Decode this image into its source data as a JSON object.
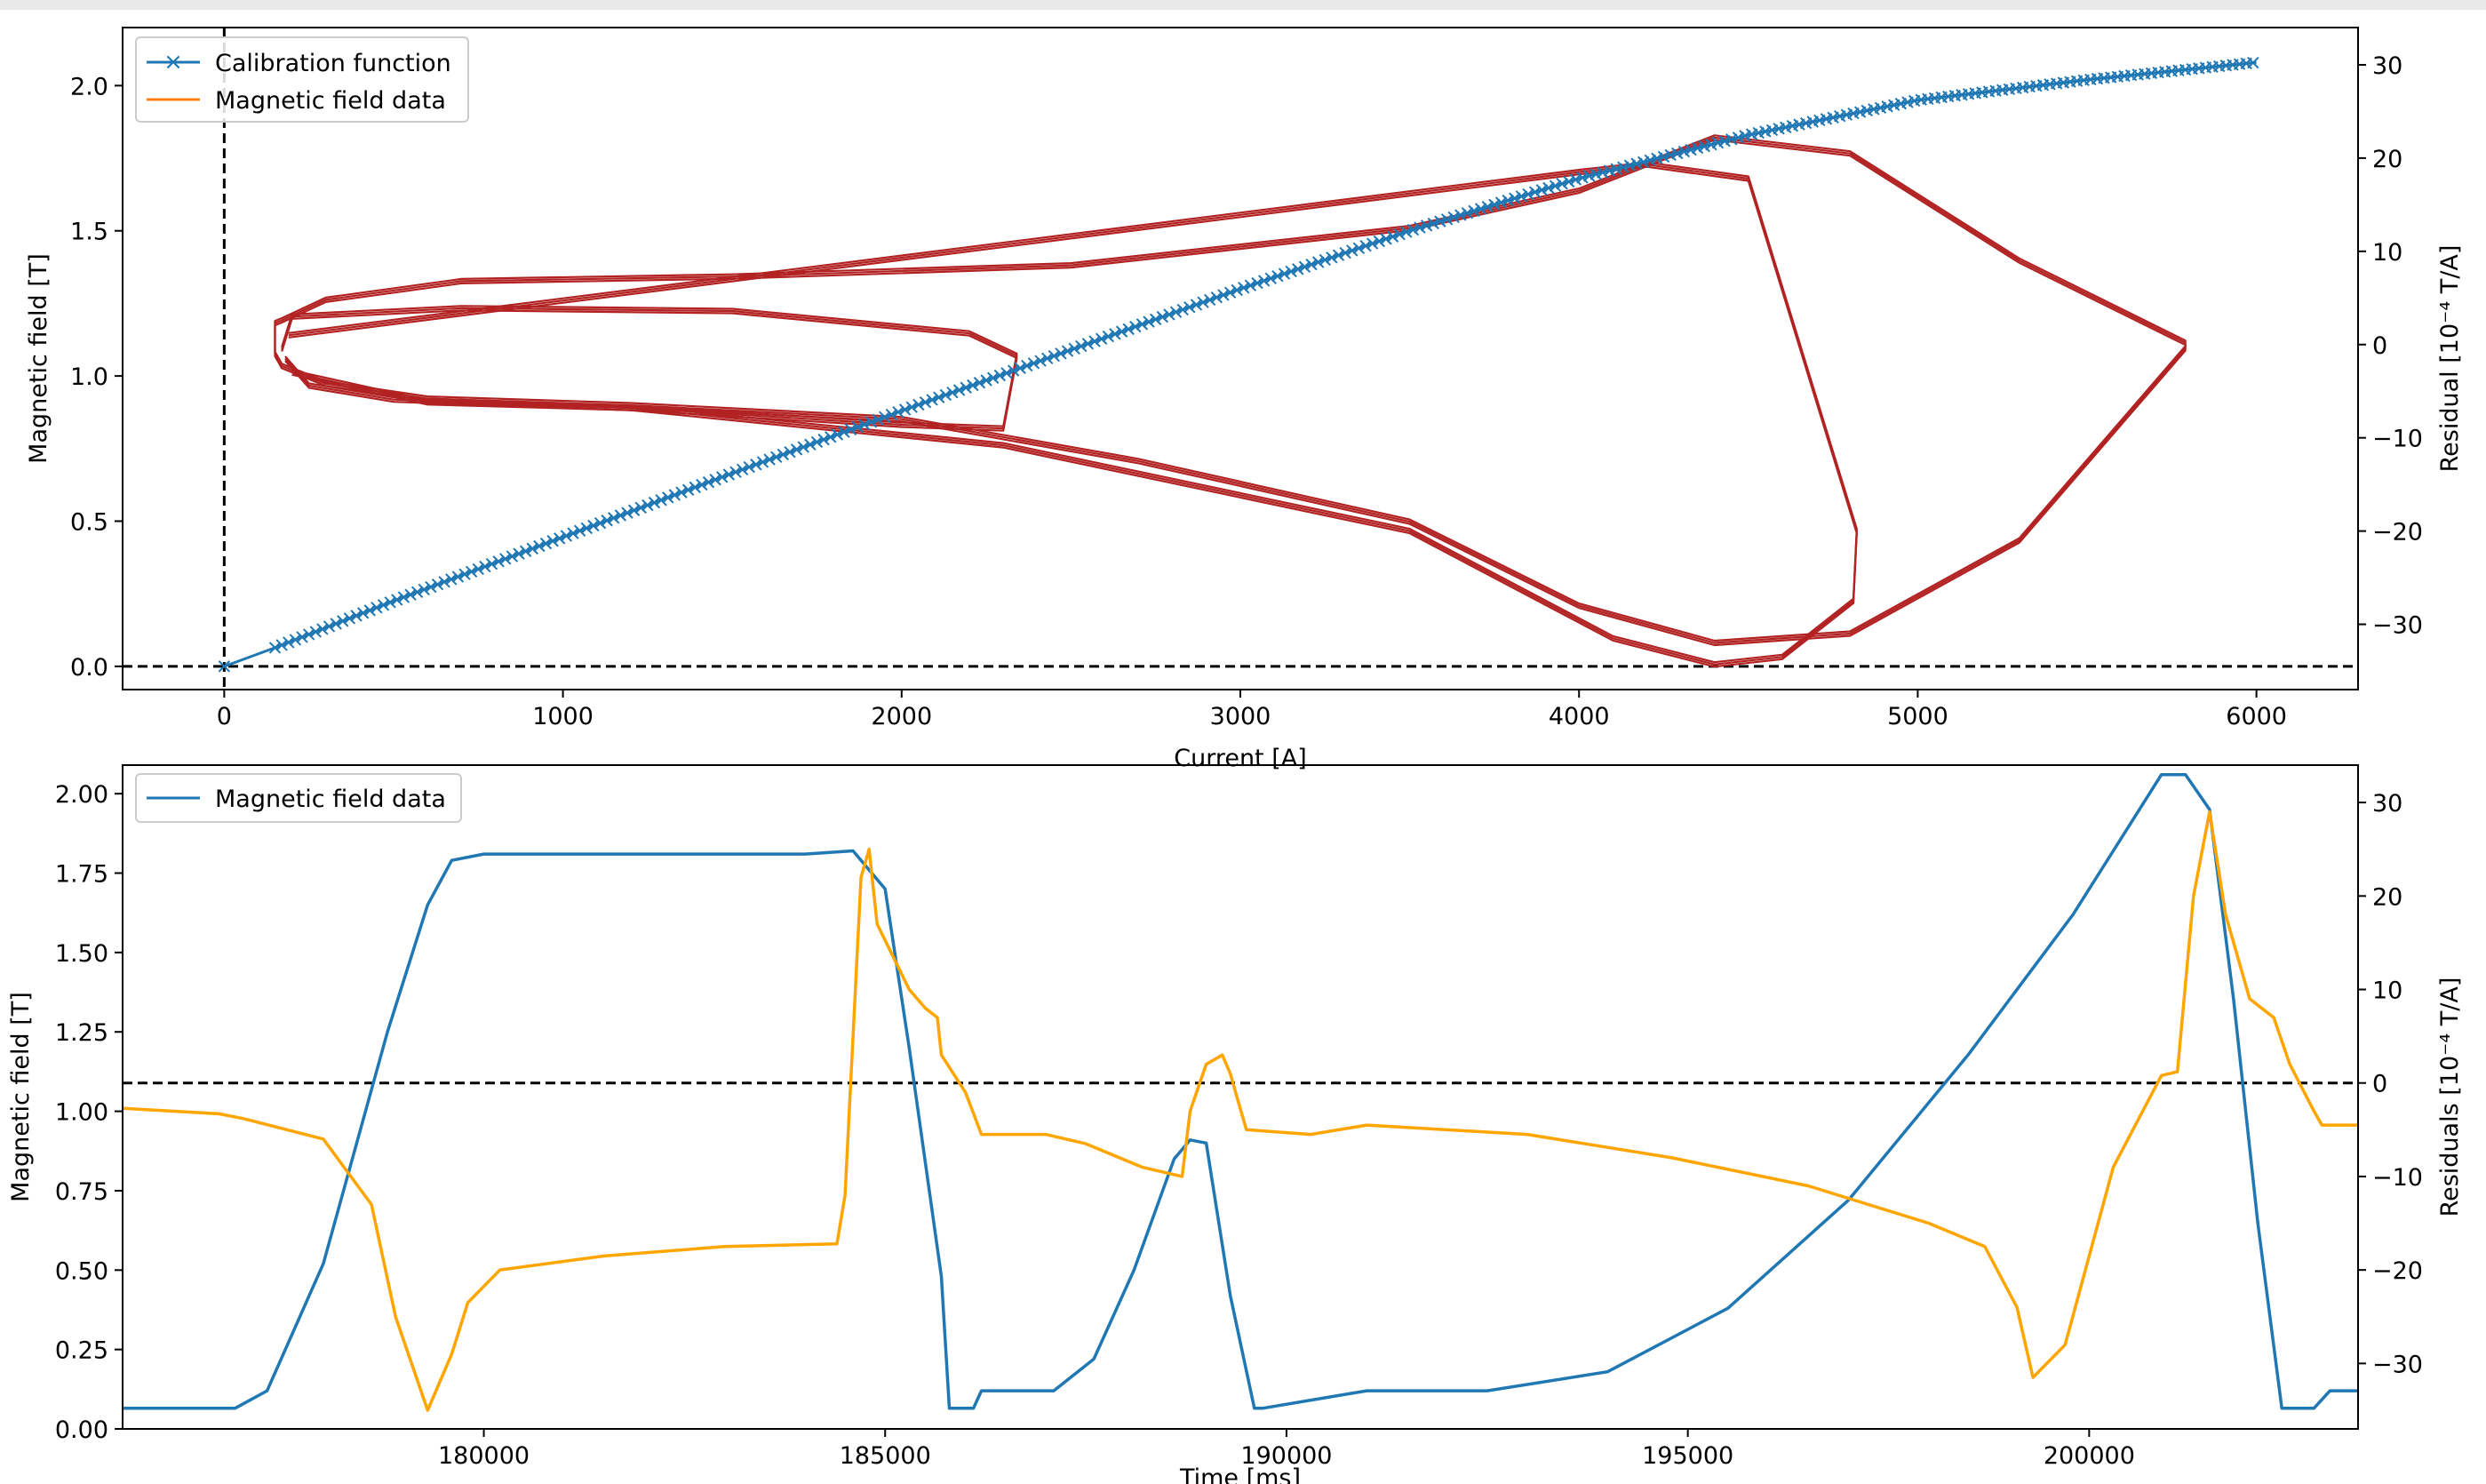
{
  "chart_data": [
    {
      "type": "line",
      "xlabel": "Current [A]",
      "ylabel": "Magnetic field [T]",
      "y2label": "Residual [10⁻⁴ T/A]",
      "xlim": [
        -300,
        6300
      ],
      "ylim": [
        -0.08,
        2.2
      ],
      "y2lim": [
        -37,
        34
      ],
      "xticks": [
        0,
        1000,
        2000,
        3000,
        4000,
        5000,
        6000
      ],
      "yticks": [
        0.0,
        0.5,
        1.0,
        1.5,
        2.0
      ],
      "y2ticks": [
        -30,
        -20,
        -10,
        0,
        10,
        20,
        30
      ],
      "reference_lines": {
        "vertical_x": 0,
        "horizontal_y": 0.0
      },
      "legend": {
        "placement": "upper left",
        "entries": [
          "Calibration function",
          "Magnetic field data"
        ]
      },
      "series": [
        {
          "name": "Calibration function",
          "axis": "left",
          "color": "#1f77b4",
          "marker": "x",
          "x": [
            0,
            150,
            500,
            1000,
            1500,
            2000,
            2500,
            3000,
            3500,
            4000,
            4500,
            5000,
            5500,
            6000
          ],
          "y": [
            0.0,
            0.064,
            0.225,
            0.445,
            0.665,
            0.88,
            1.09,
            1.3,
            1.5,
            1.68,
            1.83,
            1.95,
            2.02,
            2.08
          ]
        },
        {
          "name": "Magnetic field data",
          "axis": "right",
          "color": "#b22222",
          "loops": [
            {
              "x": [
                150,
                170,
                300,
                700,
                1500,
                2500,
                3500,
                4000,
                4400,
                4800,
                5300,
                5790,
                5790,
                5300,
                4800,
                4400,
                4000,
                3500,
                2700,
                2000,
                1200,
                600,
                300,
                170,
                150
              ],
              "y": [
                2.3,
                2.6,
                4.8,
                6.8,
                7.3,
                8.5,
                12.5,
                16.5,
                22.2,
                20.5,
                9.0,
                0.2,
                -0.4,
                -21.0,
                -31.0,
                -32.0,
                -28.0,
                -19.0,
                -12.5,
                -8.0,
                -6.5,
                -5.8,
                -4.2,
                -2.3,
                -1.0
              ]
            },
            {
              "x": [
                170,
                200,
                700,
                1500,
                2200,
                2340,
                2300,
                2000,
                1200,
                500,
                250,
                180
              ],
              "y": [
                -0.5,
                3.0,
                3.9,
                3.6,
                1.2,
                -1.2,
                -9.0,
                -8.6,
                -6.8,
                -5.9,
                -4.4,
                -1.5
              ]
            },
            {
              "x": [
                190,
                4000,
                4200,
                4500,
                4820,
                4810,
                4600,
                4400,
                4100,
                3500,
                2300,
                1200,
                600,
                200
              ],
              "y": [
                1.0,
                18.5,
                19.3,
                17.8,
                -20.0,
                -27.5,
                -33.5,
                -34.3,
                -31.5,
                -20.0,
                -10.8,
                -6.8,
                -6.2,
                -3.0
              ]
            }
          ]
        }
      ]
    },
    {
      "type": "line",
      "xlabel": "Time [ms]",
      "ylabel": "Magnetic field [T]",
      "y2label": "Residuals [10⁻⁴ T/A]",
      "xlim": [
        175500,
        203350
      ],
      "ylim": [
        0.0,
        2.09
      ],
      "y2lim": [
        -37,
        34
      ],
      "xticks": [
        180000,
        185000,
        190000,
        195000,
        200000
      ],
      "yticks": [
        0.0,
        0.25,
        0.5,
        0.75,
        1.0,
        1.25,
        1.5,
        1.75,
        2.0
      ],
      "y2ticks": [
        -30,
        -20,
        -10,
        0,
        10,
        20,
        30
      ],
      "reference_lines": {
        "horizontal_y2": 0
      },
      "legend": {
        "placement": "upper left",
        "entries": [
          "Magnetic field data"
        ]
      },
      "series": [
        {
          "name": "Magnetic field data",
          "axis": "left",
          "color": "#1f77b4",
          "x": [
            175500,
            176900,
            177300,
            178000,
            178800,
            179300,
            179600,
            180000,
            184000,
            184600,
            185000,
            185300,
            185700,
            185800,
            186100,
            186200,
            187100,
            187600,
            188100,
            188600,
            188800,
            189000,
            189300,
            189600,
            189700,
            191000,
            192500,
            194000,
            195500,
            197000,
            198500,
            199800,
            200300,
            200900,
            201200,
            201500,
            201800,
            202100,
            202400,
            202800,
            203000,
            203350
          ],
          "y": [
            0.065,
            0.065,
            0.12,
            0.52,
            1.25,
            1.65,
            1.79,
            1.81,
            1.81,
            1.82,
            1.7,
            1.2,
            0.48,
            0.065,
            0.065,
            0.12,
            0.12,
            0.22,
            0.5,
            0.85,
            0.91,
            0.9,
            0.42,
            0.065,
            0.065,
            0.12,
            0.12,
            0.18,
            0.38,
            0.72,
            1.18,
            1.62,
            1.82,
            2.06,
            2.06,
            1.95,
            1.35,
            0.65,
            0.065,
            0.065,
            0.12,
            0.12
          ]
        },
        {
          "name": "Residuals",
          "axis": "right",
          "color": "#ffa500",
          "x": [
            175500,
            175700,
            176700,
            177000,
            178000,
            178600,
            178900,
            179300,
            179600,
            179800,
            180200,
            181500,
            183000,
            184400,
            184500,
            184700,
            184800,
            184900,
            185300,
            185500,
            185650,
            185700,
            186000,
            186200,
            187000,
            187500,
            188200,
            188700,
            188800,
            189000,
            189200,
            189300,
            189400,
            189500,
            190300,
            191000,
            193000,
            194800,
            196500,
            198000,
            198700,
            199100,
            199300,
            199700,
            200300,
            200900,
            201100,
            201300,
            201500,
            201700,
            202000,
            202300,
            202500,
            202800,
            202900,
            203350
          ],
          "y": [
            -2.7,
            -2.8,
            -3.3,
            -3.8,
            -6.0,
            -13.0,
            -25.0,
            -35.0,
            -29.0,
            -23.5,
            -20.0,
            -18.5,
            -17.5,
            -17.2,
            -12.0,
            22.0,
            25.0,
            17.0,
            10.0,
            8.0,
            7.0,
            3.0,
            -1.0,
            -5.5,
            -5.5,
            -6.5,
            -9.0,
            -10.0,
            -3.0,
            2.0,
            3.0,
            1.0,
            -2.0,
            -5.0,
            -5.5,
            -4.5,
            -5.5,
            -8.0,
            -11.0,
            -15.0,
            -17.5,
            -24.0,
            -31.5,
            -28.0,
            -9.0,
            0.8,
            1.2,
            20.0,
            29.0,
            18.0,
            9.0,
            7.0,
            2.0,
            -3.0,
            -4.5,
            -4.5
          ]
        }
      ]
    }
  ]
}
